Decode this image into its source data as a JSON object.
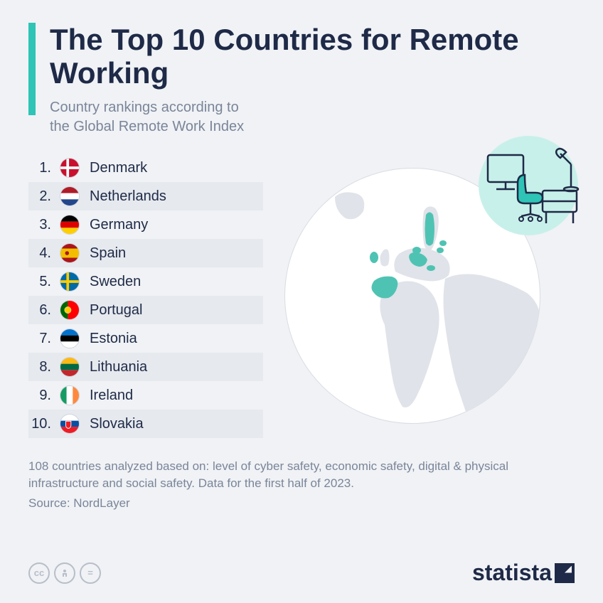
{
  "title": "The Top 10 Countries for Remote Working",
  "subtitle": "Country rankings according to\nthe Global Remote Work Index",
  "countries": [
    {
      "rank": "1.",
      "name": "Denmark",
      "flag": "denmark"
    },
    {
      "rank": "2.",
      "name": "Netherlands",
      "flag": "netherlands"
    },
    {
      "rank": "3.",
      "name": "Germany",
      "flag": "germany"
    },
    {
      "rank": "4.",
      "name": "Spain",
      "flag": "spain"
    },
    {
      "rank": "5.",
      "name": "Sweden",
      "flag": "sweden"
    },
    {
      "rank": "6.",
      "name": "Portugal",
      "flag": "portugal"
    },
    {
      "rank": "7.",
      "name": "Estonia",
      "flag": "estonia"
    },
    {
      "rank": "8.",
      "name": "Lithuania",
      "flag": "lithuania"
    },
    {
      "rank": "9.",
      "name": "Ireland",
      "flag": "ireland"
    },
    {
      "rank": "10.",
      "name": "Slovakia",
      "flag": "slovakia"
    }
  ],
  "footnote": "108 countries analyzed based on: level of cyber safety, economic safety, digital & physical infrastructure and social safety. Data for the first half of 2023.",
  "source": "Source: NordLayer",
  "logo": "statista",
  "colors": {
    "accent": "#2ec4b6",
    "title": "#1e2a47",
    "muted": "#7a8599",
    "bg": "#f0f2f5",
    "row_alt": "#e6e9ee",
    "globe_bg": "#ffffff",
    "land": "#e0e3e9",
    "highlight": "#4fc3b3",
    "desk_bg": "#c8f0ea"
  },
  "fonts": {
    "title_size": 42,
    "subtitle_size": 20,
    "row_size": 20,
    "footnote_size": 17
  },
  "flags": {
    "denmark": {
      "bg": "#c8102e",
      "cross": "#ffffff"
    },
    "netherlands": {
      "stripes": [
        "#ae1c28",
        "#ffffff",
        "#21468b"
      ]
    },
    "germany": {
      "stripes": [
        "#000000",
        "#dd0000",
        "#ffce00"
      ]
    },
    "spain": {
      "stripes": [
        "#aa151b",
        "#f1bf00",
        "#aa151b"
      ],
      "mid_height": 0.5
    },
    "sweden": {
      "bg": "#006aa7",
      "cross": "#fecc00"
    },
    "portugal": {
      "left": "#006600",
      "right": "#ff0000",
      "split": 0.4,
      "circle": "#ffcc00"
    },
    "estonia": {
      "stripes": [
        "#0072ce",
        "#000000",
        "#ffffff"
      ]
    },
    "lithuania": {
      "stripes": [
        "#fdb913",
        "#006a44",
        "#c1272d"
      ]
    },
    "ireland": {
      "v_stripes": [
        "#169b62",
        "#ffffff",
        "#ff883e"
      ]
    },
    "slovakia": {
      "stripes": [
        "#ffffff",
        "#0b4ea2",
        "#ee1c25"
      ],
      "shield": true
    }
  }
}
